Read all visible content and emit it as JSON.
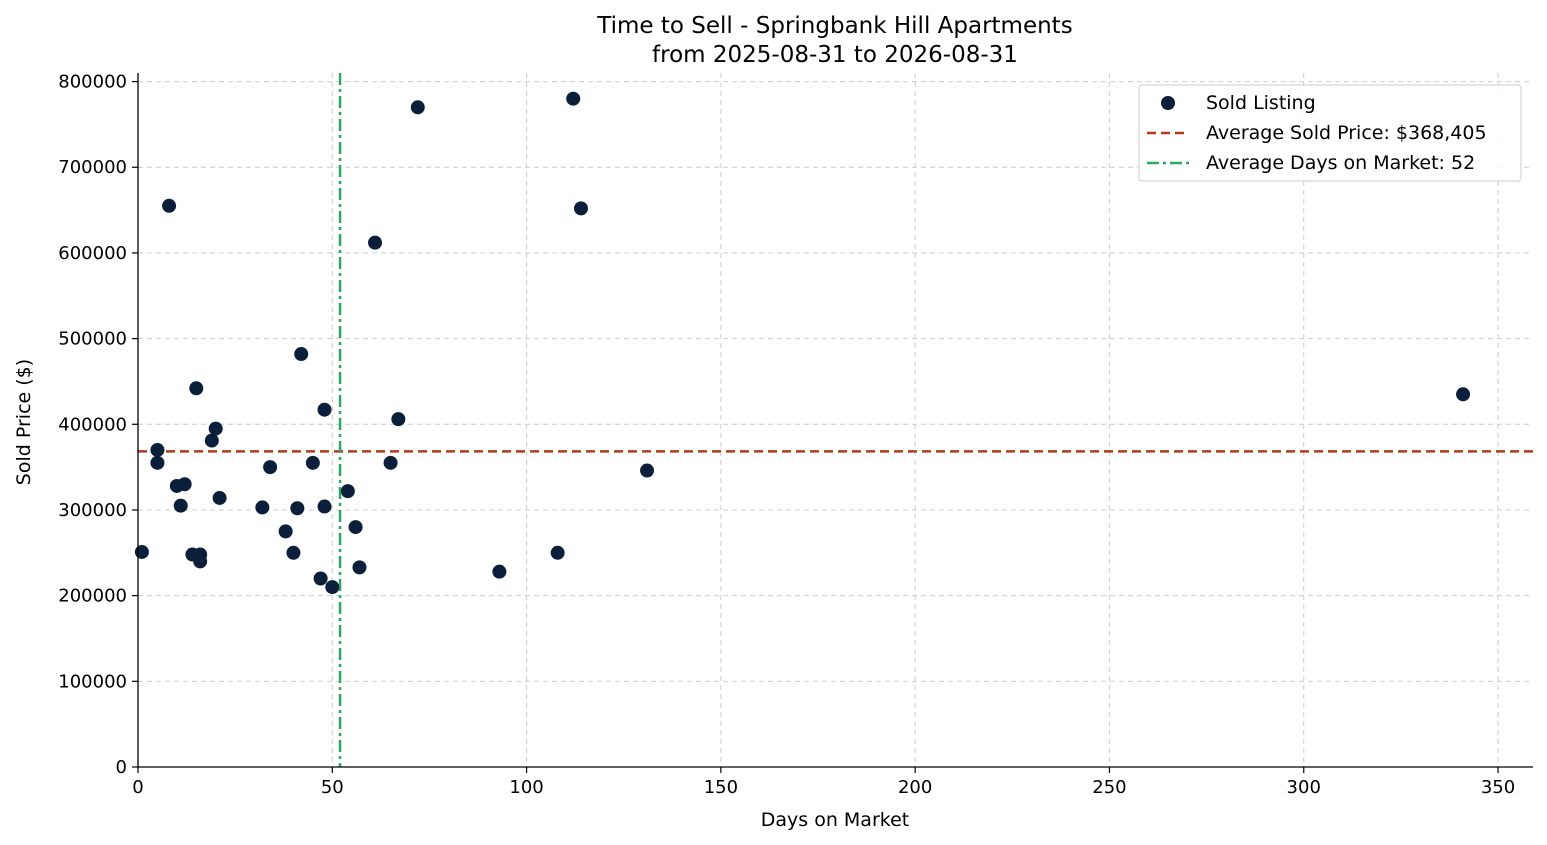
{
  "chart_data": {
    "type": "scatter",
    "title": "Time to Sell - Springbank Hill Apartments",
    "subtitle": "from 2025-08-31 to 2026-08-31",
    "xlabel": "Days on Market",
    "ylabel": "Sold Price ($)",
    "xlim": [
      0,
      359
    ],
    "ylim": [
      0,
      810000
    ],
    "xticks": [
      0,
      50,
      100,
      150,
      200,
      250,
      300,
      350
    ],
    "yticks": [
      0,
      100000,
      200000,
      300000,
      400000,
      500000,
      600000,
      700000,
      800000
    ],
    "grid": true,
    "legend_position": "top-right",
    "colors": {
      "points": "#0b1f3a",
      "avg_price": "#b5391f",
      "avg_days": "#2aa866"
    },
    "series": [
      {
        "name": "Sold Listing",
        "points": [
          {
            "x": 1,
            "y": 251000
          },
          {
            "x": 5,
            "y": 370000
          },
          {
            "x": 5,
            "y": 355000
          },
          {
            "x": 8,
            "y": 655000
          },
          {
            "x": 10,
            "y": 328000
          },
          {
            "x": 11,
            "y": 305000
          },
          {
            "x": 12,
            "y": 330000
          },
          {
            "x": 14,
            "y": 248000
          },
          {
            "x": 15,
            "y": 442000
          },
          {
            "x": 16,
            "y": 248000
          },
          {
            "x": 16,
            "y": 240000
          },
          {
            "x": 19,
            "y": 381000
          },
          {
            "x": 20,
            "y": 395000
          },
          {
            "x": 21,
            "y": 314000
          },
          {
            "x": 32,
            "y": 303000
          },
          {
            "x": 34,
            "y": 350000
          },
          {
            "x": 38,
            "y": 275000
          },
          {
            "x": 40,
            "y": 250000
          },
          {
            "x": 41,
            "y": 302000
          },
          {
            "x": 42,
            "y": 482000
          },
          {
            "x": 45,
            "y": 355000
          },
          {
            "x": 47,
            "y": 220000
          },
          {
            "x": 48,
            "y": 417000
          },
          {
            "x": 48,
            "y": 304000
          },
          {
            "x": 50,
            "y": 210000
          },
          {
            "x": 54,
            "y": 322000
          },
          {
            "x": 56,
            "y": 280000
          },
          {
            "x": 57,
            "y": 233000
          },
          {
            "x": 61,
            "y": 612000
          },
          {
            "x": 65,
            "y": 355000
          },
          {
            "x": 67,
            "y": 406000
          },
          {
            "x": 72,
            "y": 770000
          },
          {
            "x": 93,
            "y": 228000
          },
          {
            "x": 108,
            "y": 250000
          },
          {
            "x": 112,
            "y": 780000
          },
          {
            "x": 114,
            "y": 652000
          },
          {
            "x": 131,
            "y": 346000
          },
          {
            "x": 341,
            "y": 435000
          }
        ]
      }
    ],
    "reference_lines": [
      {
        "name": "Average Sold Price: $368,405",
        "orientation": "horizontal",
        "value": 368405,
        "style": "dashed"
      },
      {
        "name": "Average Days on Market: 52",
        "orientation": "vertical",
        "value": 52,
        "style": "dashdot"
      }
    ]
  }
}
